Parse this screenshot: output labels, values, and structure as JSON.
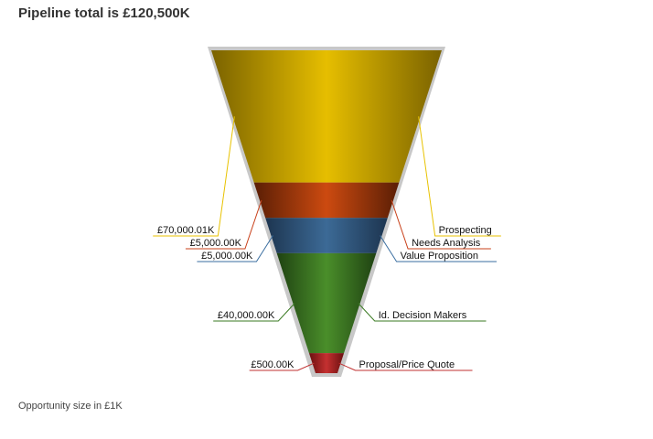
{
  "header": {
    "title": "Pipeline total is £120,500K"
  },
  "footer": {
    "note": "Opportunity size in £1K"
  },
  "chart_data": {
    "type": "funnel",
    "title": "Pipeline total is £120,500K",
    "unit_note": "Opportunity size in £1K",
    "stages": [
      {
        "name": "Prospecting",
        "value": 70000.01,
        "label": "£70,000.01K",
        "color_dark": "#7a6200",
        "color_light": "#e6be00",
        "line_color": "#e8c200"
      },
      {
        "name": "Needs Analysis",
        "value": 5000.0,
        "label": "£5,000.00K",
        "color_dark": "#5a1e05",
        "color_light": "#cc4a10",
        "line_color": "#c8401a"
      },
      {
        "name": "Value Proposition",
        "value": 5000.0,
        "label": "£5,000.00K",
        "color_dark": "#1d3550",
        "color_light": "#3c6a96",
        "line_color": "#3a6ea0"
      },
      {
        "name": "Id. Decision Makers",
        "value": 40000.0,
        "label": "£40,000.00K",
        "color_dark": "#1f4212",
        "color_light": "#4a8e2a",
        "line_color": "#3a7a22"
      },
      {
        "name": "Proposal/Price Quote",
        "value": 500.0,
        "label": "£500.00K",
        "color_dark": "#6a1010",
        "color_light": "#c43030",
        "line_color": "#c03030"
      }
    ],
    "funnel_border_color": "#c8c8c8"
  }
}
